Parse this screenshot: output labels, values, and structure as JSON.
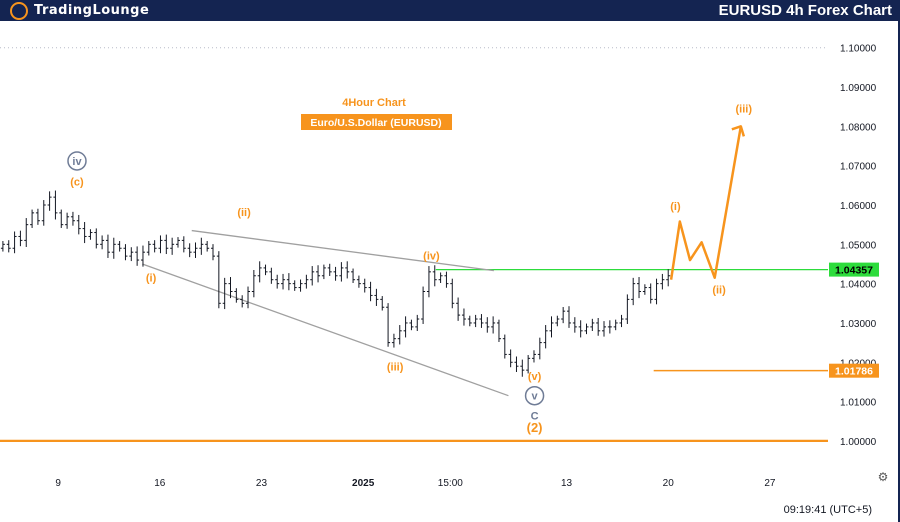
{
  "header": {
    "brand_name": "TradingLounge",
    "brand_logo_letter": "",
    "title": "EURUSD 4h Forex Chart"
  },
  "annotations": {
    "timeframe": "4Hour Chart",
    "instrument": "Euro/U.S.Dollar (EURUSD)"
  },
  "status": {
    "time": "09:19:41 (UTC+5)"
  },
  "colors": {
    "header_bg": "#142451",
    "wave_orange": "#f7941d",
    "wave_grey": "#6f7c96",
    "price_green": "#2ddc3c",
    "price_orange": "#f7941d",
    "candles": "#131722",
    "trendline": "#a0a0a0"
  },
  "chart_data": {
    "type": "candlestick",
    "title": "EURUSD 4h Forex Chart",
    "y_ticks": [
      "1.10000",
      "1.09000",
      "1.08000",
      "1.07000",
      "1.06000",
      "1.05000",
      "1.04000",
      "1.03000",
      "1.02000",
      "1.01000",
      "1.00000"
    ],
    "y_tick_values": [
      1.1,
      1.09,
      1.08,
      1.07,
      1.06,
      1.05,
      1.04,
      1.03,
      1.02,
      1.01,
      1.0
    ],
    "ylim": [
      0.9926,
      1.1068
    ],
    "x_tick_labels": [
      "9",
      "16",
      "23",
      "2025",
      "15:00",
      "13",
      "20",
      "27"
    ],
    "x_ticks": [
      0,
      7,
      14,
      21,
      27,
      35,
      42,
      49
    ],
    "xlim": [
      -4,
      53
    ],
    "current_price": {
      "label": "1.04357",
      "value": 1.04357
    },
    "levels": [
      {
        "label": "1.01786",
        "value": 1.01786,
        "x_start": 41.0
      },
      {
        "label": "",
        "value": 1.0,
        "x_start": -4
      }
    ],
    "support_line": {
      "value": 1.04357,
      "x_start": 26.0,
      "x_end": 53
    },
    "closes": [
      1.05,
      1.049,
      1.052,
      1.051,
      1.055,
      1.058,
      1.056,
      1.06,
      1.062,
      1.058,
      1.055,
      1.057,
      1.056,
      1.054,
      1.052,
      1.053,
      1.05,
      1.051,
      1.048,
      1.05,
      1.049,
      1.047,
      1.048,
      1.046,
      1.048,
      1.05,
      1.049,
      1.051,
      1.049,
      1.05,
      1.051,
      1.049,
      1.048,
      1.049,
      1.05,
      1.049,
      1.047,
      1.035,
      1.04,
      1.038,
      1.036,
      1.035,
      1.038,
      1.042,
      1.044,
      1.043,
      1.041,
      1.04,
      1.041,
      1.04,
      1.039,
      1.04,
      1.041,
      1.043,
      1.042,
      1.044,
      1.043,
      1.042,
      1.044,
      1.043,
      1.041,
      1.04,
      1.039,
      1.037,
      1.036,
      1.034,
      1.025,
      1.026,
      1.028,
      1.03,
      1.029,
      1.031,
      1.038,
      1.043,
      1.041,
      1.042,
      1.04,
      1.035,
      1.032,
      1.031,
      1.03,
      1.031,
      1.03,
      1.029,
      1.03,
      1.026,
      1.022,
      1.02,
      1.019,
      1.018,
      1.021,
      1.022,
      1.025,
      1.028,
      1.03,
      1.031,
      1.033,
      1.03,
      1.029,
      1.028,
      1.029,
      1.03,
      1.028,
      1.029,
      1.029,
      1.03,
      1.031,
      1.036,
      1.04,
      1.038,
      1.039,
      1.036,
      1.04,
      1.041,
      1.042
    ],
    "wave_labels": [
      {
        "text": "iv",
        "x": 1.3,
        "y": 1.0712,
        "color": "grey",
        "circled": true
      },
      {
        "text": "(c)",
        "x": 1.3,
        "y": 1.066,
        "color": "orange"
      },
      {
        "text": "(ii)",
        "x": 12.8,
        "y": 1.0582,
        "color": "orange"
      },
      {
        "text": "(i)",
        "x": 6.4,
        "y": 1.0415,
        "color": "orange"
      },
      {
        "text": "(iv)",
        "x": 25.7,
        "y": 1.0472,
        "color": "orange"
      },
      {
        "text": "(iii)",
        "x": 23.2,
        "y": 1.0189,
        "color": "orange"
      },
      {
        "text": "(v)",
        "x": 32.8,
        "y": 1.0165,
        "color": "orange"
      },
      {
        "text": "v",
        "x": 32.8,
        "y": 1.0115,
        "color": "grey",
        "circled": true
      },
      {
        "text": "C",
        "x": 32.8,
        "y": 1.0065,
        "color": "grey"
      },
      {
        "text": "(2)",
        "x": 32.8,
        "y": 1.0033,
        "color": "orange"
      },
      {
        "text": "(i)",
        "x": 42.5,
        "y": 1.0598,
        "color": "orange"
      },
      {
        "text": "(ii)",
        "x": 45.5,
        "y": 1.0385,
        "color": "orange"
      },
      {
        "text": "(iii)",
        "x": 47.2,
        "y": 1.0846,
        "color": "orange"
      }
    ],
    "projection": [
      [
        42.2,
        1.041
      ],
      [
        42.8,
        1.0558
      ],
      [
        43.5,
        1.046
      ],
      [
        44.3,
        1.0505
      ],
      [
        45.2,
        1.0415
      ],
      [
        47.0,
        1.08
      ]
    ],
    "trendlines": [
      {
        "from": [
          9.2,
          1.0535
        ],
        "to": [
          30.0,
          1.0433
        ]
      },
      {
        "from": [
          5.8,
          1.045
        ],
        "to": [
          31.0,
          1.0115
        ]
      }
    ]
  }
}
